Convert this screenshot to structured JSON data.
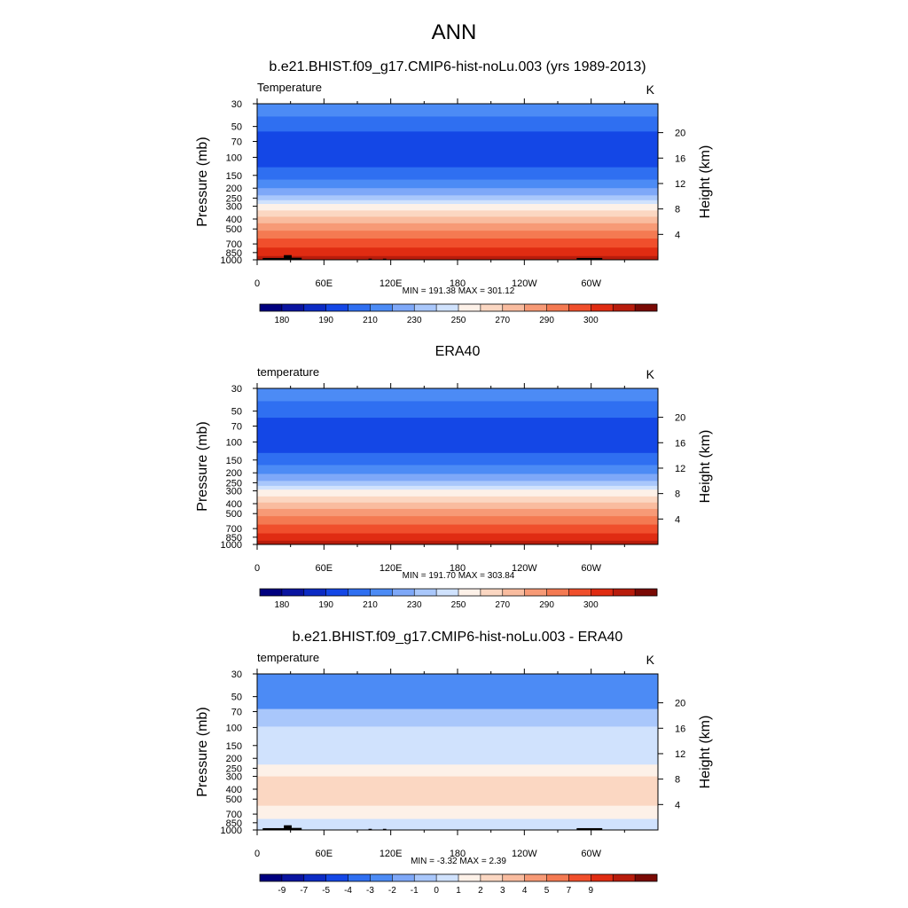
{
  "figure": {
    "main_title": "ANN"
  },
  "palettes": {
    "temperature": [
      "#00007f",
      "#0a14a0",
      "#0c2bc4",
      "#1447e6",
      "#2f6ff1",
      "#4c8bf5",
      "#7ea8f8",
      "#a9c7fb",
      "#d0e2fd",
      "#fdf1e8",
      "#fbd7c2",
      "#f9bc9f",
      "#f79a76",
      "#f47a52",
      "#f04f2c",
      "#e02c12",
      "#b81c0c",
      "#7a0a05"
    ],
    "difference": [
      "#00007f",
      "#0a14a0",
      "#0c2bc4",
      "#1447e6",
      "#2f6ff1",
      "#4c8bf5",
      "#7ea8f8",
      "#a9c7fb",
      "#d0e2fd",
      "#fdf1e8",
      "#fbd7c2",
      "#f9bc9f",
      "#f79a76",
      "#f47a52",
      "#f04f2c",
      "#e02c12",
      "#b81c0c",
      "#7a0a05"
    ]
  },
  "chart_data": [
    {
      "type": "heatmap",
      "title": "b.e21.BHIST.f09_g17.CMIP6-hist-noLu.003 (yrs 1989-2013)",
      "left_label": "Temperature",
      "units": "K",
      "ylabel": "Pressure (mb)",
      "ylabel_right": "Height (km)",
      "y_scale": "log",
      "y_reversed": true,
      "ylim": [
        1000,
        30
      ],
      "xlim": [
        0,
        360
      ],
      "y_ticks": [
        "30",
        "50",
        "70",
        "100",
        "150",
        "200",
        "250",
        "300",
        "400",
        "500",
        "700",
        "850",
        "1000"
      ],
      "y_tick_values": [
        30,
        50,
        70,
        100,
        150,
        200,
        250,
        300,
        400,
        500,
        700,
        850,
        1000
      ],
      "x_ticks": [
        "0",
        "60E",
        "120E",
        "180",
        "120W",
        "60W"
      ],
      "x_tick_values": [
        0,
        60,
        120,
        180,
        240,
        300
      ],
      "right_ticks": [
        "20",
        "16",
        "12",
        "8",
        "4"
      ],
      "right_tick_values": [
        20,
        16,
        12,
        8,
        4
      ],
      "minmax": "MIN = 191.38  MAX = 301.12",
      "palette": "temperature",
      "colorbar_labels": [
        "180",
        "190",
        "210",
        "230",
        "250",
        "270",
        "290",
        "300"
      ],
      "colorbar_label_positions": [
        1,
        3,
        5,
        7,
        9,
        11,
        13,
        15
      ],
      "bands": [
        {
          "p_bottom": 40,
          "level": 5
        },
        {
          "p_bottom": 56,
          "level": 4
        },
        {
          "p_bottom": 125,
          "level": 3
        },
        {
          "p_bottom": 165,
          "level": 4
        },
        {
          "p_bottom": 200,
          "level": 5
        },
        {
          "p_bottom": 235,
          "level": 6
        },
        {
          "p_bottom": 262,
          "level": 7
        },
        {
          "p_bottom": 285,
          "level": 8
        },
        {
          "p_bottom": 330,
          "level": 9
        },
        {
          "p_bottom": 380,
          "level": 10
        },
        {
          "p_bottom": 440,
          "level": 11
        },
        {
          "p_bottom": 520,
          "level": 12
        },
        {
          "p_bottom": 620,
          "level": 13
        },
        {
          "p_bottom": 760,
          "level": 14
        },
        {
          "p_bottom": 920,
          "level": 15
        },
        {
          "p_bottom": 1000,
          "level": 16
        }
      ],
      "topography": [
        {
          "lon_start": 5,
          "lon_end": 28,
          "p_top": 960
        },
        {
          "lon_start": 24,
          "lon_end": 31,
          "p_top": 900
        },
        {
          "lon_start": 29,
          "lon_end": 40,
          "p_top": 955
        },
        {
          "lon_start": 100,
          "lon_end": 103,
          "p_top": 975
        },
        {
          "lon_start": 113,
          "lon_end": 116,
          "p_top": 975
        },
        {
          "lon_start": 287,
          "lon_end": 310,
          "p_top": 960
        }
      ]
    },
    {
      "type": "heatmap",
      "title": "ERA40",
      "left_label": "temperature",
      "units": "K",
      "ylabel": "Pressure (mb)",
      "ylabel_right": "Height (km)",
      "y_scale": "log",
      "y_reversed": true,
      "ylim": [
        1000,
        30
      ],
      "xlim": [
        0,
        360
      ],
      "y_ticks": [
        "30",
        "50",
        "70",
        "100",
        "150",
        "200",
        "250",
        "300",
        "400",
        "500",
        "700",
        "850",
        "1000"
      ],
      "y_tick_values": [
        30,
        50,
        70,
        100,
        150,
        200,
        250,
        300,
        400,
        500,
        700,
        850,
        1000
      ],
      "x_ticks": [
        "0",
        "60E",
        "120E",
        "180",
        "120W",
        "60W"
      ],
      "x_tick_values": [
        0,
        60,
        120,
        180,
        240,
        300
      ],
      "right_ticks": [
        "20",
        "16",
        "12",
        "8",
        "4"
      ],
      "right_tick_values": [
        20,
        16,
        12,
        8,
        4
      ],
      "minmax": "MIN = 191.70  MAX = 303.84",
      "palette": "temperature",
      "colorbar_labels": [
        "180",
        "190",
        "210",
        "230",
        "250",
        "270",
        "290",
        "300"
      ],
      "colorbar_label_positions": [
        1,
        3,
        5,
        7,
        9,
        11,
        13,
        15
      ],
      "bands": [
        {
          "p_bottom": 40,
          "level": 5
        },
        {
          "p_bottom": 58,
          "level": 4
        },
        {
          "p_bottom": 128,
          "level": 3
        },
        {
          "p_bottom": 168,
          "level": 4
        },
        {
          "p_bottom": 205,
          "level": 5
        },
        {
          "p_bottom": 240,
          "level": 6
        },
        {
          "p_bottom": 268,
          "level": 7
        },
        {
          "p_bottom": 292,
          "level": 8
        },
        {
          "p_bottom": 340,
          "level": 9
        },
        {
          "p_bottom": 390,
          "level": 10
        },
        {
          "p_bottom": 450,
          "level": 11
        },
        {
          "p_bottom": 530,
          "level": 12
        },
        {
          "p_bottom": 640,
          "level": 13
        },
        {
          "p_bottom": 780,
          "level": 14
        },
        {
          "p_bottom": 920,
          "level": 15
        },
        {
          "p_bottom": 1000,
          "level": 16
        }
      ],
      "topography": []
    },
    {
      "type": "heatmap",
      "title": "b.e21.BHIST.f09_g17.CMIP6-hist-noLu.003 - ERA40",
      "left_label": "temperature",
      "units": "K",
      "ylabel": "Pressure (mb)",
      "ylabel_right": "Height (km)",
      "y_scale": "log",
      "y_reversed": true,
      "ylim": [
        1000,
        30
      ],
      "xlim": [
        0,
        360
      ],
      "y_ticks": [
        "30",
        "50",
        "70",
        "100",
        "150",
        "200",
        "250",
        "300",
        "400",
        "500",
        "700",
        "850",
        "1000"
      ],
      "y_tick_values": [
        30,
        50,
        70,
        100,
        150,
        200,
        250,
        300,
        400,
        500,
        700,
        850,
        1000
      ],
      "x_ticks": [
        "0",
        "60E",
        "120E",
        "180",
        "120W",
        "60W"
      ],
      "x_tick_values": [
        0,
        60,
        120,
        180,
        240,
        300
      ],
      "right_ticks": [
        "20",
        "16",
        "12",
        "8",
        "4"
      ],
      "right_tick_values": [
        20,
        16,
        12,
        8,
        4
      ],
      "minmax": "MIN =  -3.32  MAX =   2.39",
      "palette": "difference",
      "colorbar_labels": [
        "-9",
        "-7",
        "-5",
        "-4",
        "-3",
        "-2",
        "-1",
        "0",
        "1",
        "2",
        "3",
        "4",
        "5",
        "7",
        "9"
      ],
      "colorbar_label_positions": [
        1,
        2,
        3,
        4,
        5,
        6,
        7,
        8,
        9,
        10,
        11,
        12,
        13,
        14,
        15
      ],
      "bands": [
        {
          "p_bottom": 66,
          "level": 5
        },
        {
          "p_bottom": 98,
          "level": 7
        },
        {
          "p_bottom": 230,
          "level": 8
        },
        {
          "p_bottom": 300,
          "level": 9
        },
        {
          "p_bottom": 580,
          "level": 10
        },
        {
          "p_bottom": 780,
          "level": 9
        },
        {
          "p_bottom": 1000,
          "level": 8
        }
      ],
      "topography": [
        {
          "lon_start": 5,
          "lon_end": 28,
          "p_top": 960
        },
        {
          "lon_start": 24,
          "lon_end": 31,
          "p_top": 900
        },
        {
          "lon_start": 29,
          "lon_end": 40,
          "p_top": 955
        },
        {
          "lon_start": 100,
          "lon_end": 103,
          "p_top": 975
        },
        {
          "lon_start": 113,
          "lon_end": 116,
          "p_top": 975
        },
        {
          "lon_start": 287,
          "lon_end": 310,
          "p_top": 960
        }
      ]
    }
  ]
}
